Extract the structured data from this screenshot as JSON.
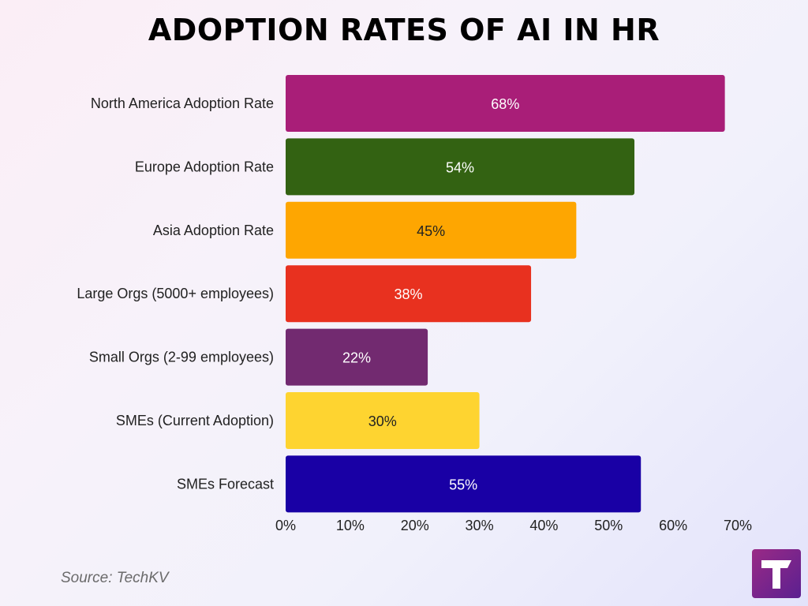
{
  "chart_data": {
    "type": "bar",
    "orientation": "horizontal",
    "title": "ADOPTION RATES OF AI IN HR",
    "categories": [
      "North America Adoption Rate",
      "Europe Adoption Rate",
      "Asia Adoption Rate",
      "Large Orgs (5000+ employees)",
      "Small Orgs (2-99 employees)",
      "SMEs (Current Adoption)",
      "SMEs Forecast"
    ],
    "values": [
      68,
      54,
      45,
      38,
      22,
      30,
      55
    ],
    "data_labels": [
      "68%",
      "54%",
      "45%",
      "38%",
      "22%",
      "30%",
      "55%"
    ],
    "bar_colors": [
      "#a91e78",
      "#336212",
      "#fea601",
      "#e8311f",
      "#722a70",
      "#fed430",
      "#1900a5"
    ],
    "label_colors": [
      "#ffffff",
      "#ffffff",
      "#222222",
      "#ffffff",
      "#ffffff",
      "#222222",
      "#ffffff"
    ],
    "xlim": [
      0,
      70
    ],
    "xticks": [
      0,
      10,
      20,
      30,
      40,
      50,
      60,
      70
    ],
    "xtick_labels": [
      "0%",
      "10%",
      "20%",
      "30%",
      "40%",
      "50%",
      "60%",
      "70%"
    ],
    "grid": false,
    "legend": "none"
  },
  "source": "Source: TechKV",
  "logo_icon": "techkv-logo-icon"
}
